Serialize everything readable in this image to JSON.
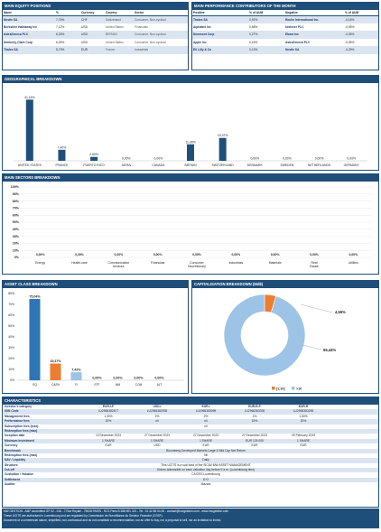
{
  "equity": {
    "title": "MAIN EQUITY POSITIONS",
    "headers": [
      "Name",
      "%",
      "Currency",
      "Country",
      "Sector"
    ],
    "rows": [
      [
        "Nestle SA",
        "7,76%",
        "CHF",
        "Switzerland",
        "Consumer, Non-cyclical"
      ],
      [
        "Berkshire Hathaway Inc",
        "7,12%",
        "USD",
        "United States",
        "Financials"
      ],
      [
        "AstraZeneca PLC",
        "6,33%",
        "USD",
        "BRITAIN",
        "Consumer, Non-cyclical"
      ],
      [
        "Kimberly-Clark Corp",
        "6,05%",
        "USD",
        "United States",
        "Consumer, Non-cyclical"
      ],
      [
        "Thales SA",
        "5,79%",
        "EUR",
        "France",
        "Industrials"
      ]
    ]
  },
  "contributors": {
    "title": "MAIN PERFORMANCE CONTRIBUTORS OF THE MONTH",
    "headers": [
      "Positive",
      "% of AUM",
      "Negative",
      "% of AUM"
    ],
    "rows": [
      [
        "Thales SA",
        "0,92%",
        "Roche International Inc",
        "-0,16%"
      ],
      [
        "Alphabet Inc",
        "0,58%",
        "Unilever PLC",
        "-0,05%"
      ],
      [
        "Newmont Corp",
        "0,27%",
        "Ebara Inc",
        "-0,05%"
      ],
      [
        "Apple Inc",
        "0,16%",
        "AstraZeneca PLC",
        "-0,05%"
      ],
      [
        "Eli Lilly & Co",
        "0,13%",
        "Nestle SA",
        "-0,29%"
      ]
    ]
  },
  "geo": {
    "title": "GEOGRAPHICAL BREAKDOWN",
    "chart_data": {
      "type": "bar",
      "categories": [
        "UNITED STATES",
        "FRANCE",
        "PUERTO RICO",
        "JAPAN",
        "CANADA",
        "BRITAIN",
        "SWITZERLAND",
        "DENMARK",
        "SWEDEN",
        "NETHERLANDS",
        "GERMANY"
      ],
      "values": [
        41.16,
        7.4,
        2.6,
        0,
        0,
        11.06,
        15.37,
        0,
        0,
        0,
        0
      ],
      "labels": [
        "41,16%",
        "7,40%",
        "2,60%",
        "0,00%",
        "0,00%",
        "11,06%",
        "15,37%",
        "0,00%",
        "0,00%",
        "0,00%",
        "0,00%"
      ],
      "color": "#1f4e79"
    }
  },
  "sectors": {
    "title": "MAIN SECTORS BREAKDOWN",
    "chart_data": {
      "type": "bar",
      "categories": [
        "Energy",
        "Health-care",
        "Communication services",
        "Financials",
        "Consumer Discretionary",
        "Industrials",
        "Materials",
        "Real Estate",
        "Utilities"
      ],
      "values": [
        0,
        0,
        0,
        0,
        0,
        0,
        0,
        0,
        0
      ],
      "labels": [
        "0,00%",
        "0,00%",
        "0,00%",
        "0,00%",
        "0,00%",
        "0,00%",
        "0,00%",
        "0,00%",
        "0,00%"
      ],
      "yticks": [
        "100%",
        "90%",
        "80%",
        "70%",
        "60%",
        "50%",
        "40%",
        "30%",
        "20%",
        "10%",
        "0%"
      ],
      "ylim": [
        0,
        100
      ]
    }
  },
  "asset": {
    "title": "ASSET CLASS BREAKDOWN",
    "chart_data": {
      "type": "bar",
      "categories": [
        "EQ",
        "CASH",
        "FI",
        "ETF",
        "MM",
        "COM",
        "ALT"
      ],
      "values": [
        75.04,
        15.37,
        7.42,
        0,
        0,
        0,
        0
      ],
      "labels": [
        "75,04%",
        "15,37%",
        "7,42%",
        "0,00%",
        "0,00%",
        "0,00%",
        "0,00%"
      ],
      "colors": [
        "#2e75b6",
        "#ed7d31",
        "#9dc3e6",
        "#9dc3e6",
        "#9dc3e6",
        "#9dc3e6",
        "#9dc3e6"
      ],
      "yticks": [
        "80%",
        "70%",
        "60%",
        "50%",
        "40%",
        "30%",
        "20%",
        "10%",
        "0%"
      ],
      "ylim": [
        0,
        80
      ]
    }
  },
  "cap": {
    "title": "CAPITALISATION BREAKDOWN (Md$)",
    "chart_data": {
      "type": "pie",
      "slices": [
        {
          "label": "[1;10]",
          "value": 4.56,
          "text": "4,56%",
          "color": "#ed7d31"
        },
        {
          "label": ">10",
          "value": 95.44,
          "text": "95,44%",
          "color": "#9dc3e6"
        }
      ]
    }
  },
  "characteristics": {
    "title": "CHARACTERISTICS",
    "share_classes": [
      "EUR-I-P",
      "USD-I",
      "EUR-I",
      "EUR-R-P",
      "EUR-R"
    ],
    "rows": [
      {
        "label": "Investor's category",
        "values": [
          "EUR-I-P",
          "USD-I",
          "EUR-I",
          "EUR-R-P",
          "EUR-R"
        ]
      },
      {
        "label": "ISIN Code",
        "values": [
          "LU2965382877",
          "LU2965382935",
          "LU2965383099",
          "LU2965383339",
          "LU2965383255"
        ]
      },
      {
        "label": "Management fees",
        "values": [
          "1,30%",
          "2%",
          "2%",
          "1%",
          "1,50%"
        ]
      },
      {
        "label": "Performance fees",
        "values": [
          "20%",
          "nil",
          "nil",
          "15%",
          "20%"
        ]
      },
      {
        "label": "Subscription fees (max)",
        "full": "nil"
      },
      {
        "label": "Redemption fees (max)",
        "full": ""
      },
      {
        "label": "Inception date",
        "values": [
          "13 December 2023",
          "27 December 2023",
          "27 December 2023",
          "27 December 2023",
          "09 February 2024"
        ]
      },
      {
        "label": "Minimum investment",
        "values": [
          "1 SHARE",
          "1 SHARE",
          "1 SHARE",
          "EUR 125 000",
          "1 SHARE"
        ]
      },
      {
        "label": "Currency",
        "values": [
          "EUR",
          "USD",
          "EUR",
          "EUR",
          "EUR"
        ]
      },
      {
        "label": "Benchmark",
        "full": "Bloomberg Developed Markets Large & Mid Cap Net Return"
      },
      {
        "label": "Redemption fees (max)",
        "full": "Nil"
      },
      {
        "label": "NAV / Liquidity",
        "full": "Daily"
      },
      {
        "label": "Structure",
        "full": "This UCITS is a sub-fund of the SICAV MW ASSET MANAGEMENT"
      },
      {
        "label": "Cut-off",
        "full": "Orders admissible on each valuation day before 9 a.m. (Luxembourg time)"
      },
      {
        "label": "Custodian / Valuator",
        "full": "CACEIS Luxembourg"
      },
      {
        "label": "Settlement",
        "full": "D+2"
      },
      {
        "label": "Auditor",
        "full": "Mazars"
      }
    ]
  },
  "footer": {
    "lines": [
      "MW GESTION - AMF accredited GP 02 - 016 - 7 Rue Royale - 75008 PARIS - RCS Paris B 388 691 321 - Tel : 01 42 86 54 45 - contact@mwgestion.com - www.mwgestion.com",
      "These UCITS are authorised in Luxembourg and are regulated by Commission de Surveillance du Secteur Financier (CSSF).",
      "Document of a commercial nature, simplified, non-contractual and do not constitute a recommendation, nor an offer to buy, nor a proposal to sell, nor an invitation to invest."
    ]
  }
}
